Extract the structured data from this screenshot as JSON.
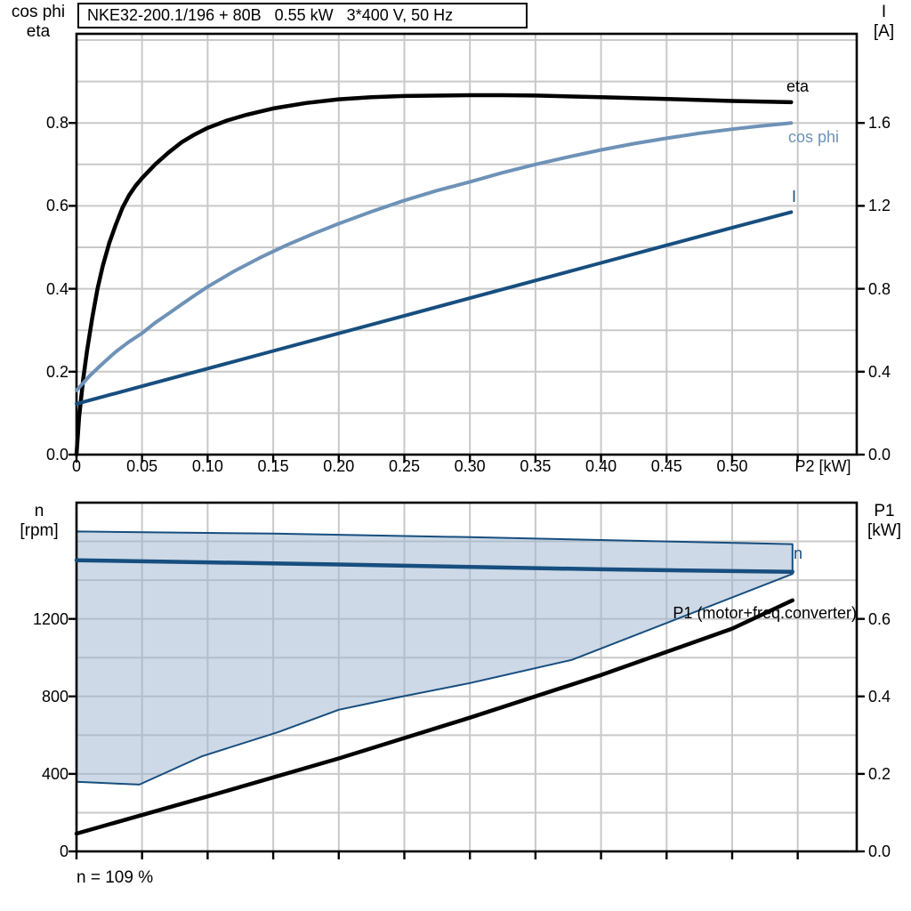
{
  "title_box": "NKE32-200.1/196 + 80B   0.55 kW   3*400 V, 50 Hz",
  "footnote": "n = 109 %",
  "colors": {
    "grid": "#c9c9c9",
    "frame": "#000000",
    "black_curve": "#000000",
    "light_blue": "#6e92b7",
    "dark_blue": "#174e7f",
    "band_fill": "#9bb3cd",
    "band_stroke": "#174e7f"
  },
  "chart_data": [
    {
      "id": "top",
      "type": "line",
      "x_label": "P2 [kW]",
      "x_range": [
        0,
        0.595
      ],
      "x_grid_step": 0.05,
      "x_ticks": {
        "values": [
          0,
          0.05,
          0.1,
          0.15,
          0.2,
          0.25,
          0.3,
          0.35,
          0.4,
          0.45,
          0.5
        ],
        "labels": [
          "0",
          "0.05",
          "0.10",
          "0.15",
          "0.20",
          "0.25",
          "0.30",
          "0.35",
          "0.40",
          "0.45",
          "0.50"
        ]
      },
      "left_axis": {
        "title": [
          "cos phi",
          "eta"
        ],
        "range": [
          0,
          1.015
        ],
        "grid_step": 0.1,
        "tick_values": [
          0,
          0.2,
          0.4,
          0.6,
          0.8
        ],
        "tick_labels": [
          "0.0",
          "0.2",
          "0.4",
          "0.6",
          "0.8"
        ]
      },
      "right_axis": {
        "title": [
          "I",
          "[A]"
        ],
        "range": [
          0,
          2.03
        ],
        "tick_values": [
          0,
          0.4,
          0.8,
          1.2,
          1.6
        ],
        "tick_labels": [
          "0.0",
          "0.4",
          "0.8",
          "1.2",
          "1.6"
        ]
      },
      "series": [
        {
          "name": "eta",
          "axis": "left",
          "color": "#000000",
          "width": 4.5,
          "points": [
            [
              0,
              0
            ],
            [
              0.002,
              0.09
            ],
            [
              0.005,
              0.18
            ],
            [
              0.008,
              0.25
            ],
            [
              0.012,
              0.33
            ],
            [
              0.016,
              0.4
            ],
            [
              0.02,
              0.455
            ],
            [
              0.025,
              0.51
            ],
            [
              0.03,
              0.555
            ],
            [
              0.035,
              0.595
            ],
            [
              0.04,
              0.625
            ],
            [
              0.045,
              0.648
            ],
            [
              0.05,
              0.667
            ],
            [
              0.06,
              0.7
            ],
            [
              0.07,
              0.728
            ],
            [
              0.08,
              0.753
            ],
            [
              0.09,
              0.772
            ],
            [
              0.1,
              0.788
            ],
            [
              0.115,
              0.806
            ],
            [
              0.13,
              0.82
            ],
            [
              0.15,
              0.835
            ],
            [
              0.175,
              0.848
            ],
            [
              0.2,
              0.857
            ],
            [
              0.225,
              0.862
            ],
            [
              0.25,
              0.865
            ],
            [
              0.3,
              0.867
            ],
            [
              0.325,
              0.867
            ],
            [
              0.35,
              0.866
            ],
            [
              0.4,
              0.862
            ],
            [
              0.45,
              0.858
            ],
            [
              0.5,
              0.853
            ],
            [
              0.545,
              0.85
            ]
          ]
        },
        {
          "name": "cos phi",
          "axis": "left",
          "color": "#6e92b7",
          "width": 4,
          "points": [
            [
              0,
              0.155
            ],
            [
              0.01,
              0.19
            ],
            [
              0.02,
              0.22
            ],
            [
              0.03,
              0.248
            ],
            [
              0.04,
              0.272
            ],
            [
              0.05,
              0.293
            ],
            [
              0.06,
              0.318
            ],
            [
              0.07,
              0.34
            ],
            [
              0.08,
              0.362
            ],
            [
              0.09,
              0.384
            ],
            [
              0.1,
              0.405
            ],
            [
              0.12,
              0.442
            ],
            [
              0.14,
              0.475
            ],
            [
              0.16,
              0.505
            ],
            [
              0.18,
              0.532
            ],
            [
              0.2,
              0.557
            ],
            [
              0.225,
              0.586
            ],
            [
              0.25,
              0.613
            ],
            [
              0.275,
              0.637
            ],
            [
              0.3,
              0.658
            ],
            [
              0.325,
              0.68
            ],
            [
              0.35,
              0.7
            ],
            [
              0.375,
              0.718
            ],
            [
              0.4,
              0.735
            ],
            [
              0.425,
              0.75
            ],
            [
              0.45,
              0.763
            ],
            [
              0.475,
              0.775
            ],
            [
              0.5,
              0.785
            ],
            [
              0.52,
              0.792
            ],
            [
              0.545,
              0.8
            ]
          ]
        },
        {
          "name": "I",
          "axis": "right",
          "color": "#174e7f",
          "width": 4,
          "points": [
            [
              0,
              0.245
            ],
            [
              0.05,
              0.33
            ],
            [
              0.1,
              0.415
            ],
            [
              0.15,
              0.5
            ],
            [
              0.2,
              0.585
            ],
            [
              0.25,
              0.67
            ],
            [
              0.3,
              0.755
            ],
            [
              0.35,
              0.84
            ],
            [
              0.4,
              0.925
            ],
            [
              0.45,
              1.01
            ],
            [
              0.5,
              1.095
            ],
            [
              0.545,
              1.17
            ]
          ]
        }
      ]
    },
    {
      "id": "bottom",
      "type": "line",
      "x_label": "",
      "x_range": [
        0,
        0.595
      ],
      "x_grid_step": 0.05,
      "x_ticks": {
        "values": [],
        "labels": []
      },
      "left_axis": {
        "title": [
          "n",
          "[rpm]"
        ],
        "range": [
          0,
          1800
        ],
        "tick_values": [
          0,
          400,
          800,
          1200
        ],
        "tick_labels": [
          "0",
          "400",
          "800",
          "1200"
        ]
      },
      "right_axis": {
        "title": [
          "P1",
          "[kW]"
        ],
        "range": [
          0,
          0.9
        ],
        "grid_step": 0.1,
        "tick_values": [
          0,
          0.2,
          0.4,
          0.6
        ],
        "tick_labels": [
          "0.0",
          "0.2",
          "0.4",
          "0.6"
        ]
      },
      "band": {
        "name": "speed-control-range",
        "upper": [
          [
            0,
            1651
          ],
          [
            0.15,
            1640
          ],
          [
            0.3,
            1622
          ],
          [
            0.45,
            1600
          ],
          [
            0.546,
            1586
          ]
        ],
        "lower": [
          [
            0,
            359
          ],
          [
            0.048,
            345
          ],
          [
            0.096,
            492
          ],
          [
            0.154,
            616
          ],
          [
            0.2,
            731
          ],
          [
            0.245,
            795
          ],
          [
            0.3,
            869
          ],
          [
            0.378,
            989
          ],
          [
            0.546,
            1432
          ]
        ]
      },
      "series": [
        {
          "name": "n",
          "axis": "left",
          "color": "#174e7f",
          "width": 4.5,
          "points": [
            [
              0,
              1503
            ],
            [
              0.1,
              1492
            ],
            [
              0.2,
              1481
            ],
            [
              0.3,
              1468
            ],
            [
              0.4,
              1456
            ],
            [
              0.5,
              1447
            ],
            [
              0.546,
              1443
            ]
          ]
        },
        {
          "name": "P1 (motor+freq.converter)",
          "axis": "right",
          "color": "#000000",
          "width": 4.5,
          "points": [
            [
              0,
              0.046
            ],
            [
              0.1,
              0.142
            ],
            [
              0.2,
              0.24
            ],
            [
              0.3,
              0.345
            ],
            [
              0.4,
              0.455
            ],
            [
              0.5,
              0.575
            ],
            [
              0.546,
              0.648
            ]
          ]
        }
      ]
    }
  ]
}
